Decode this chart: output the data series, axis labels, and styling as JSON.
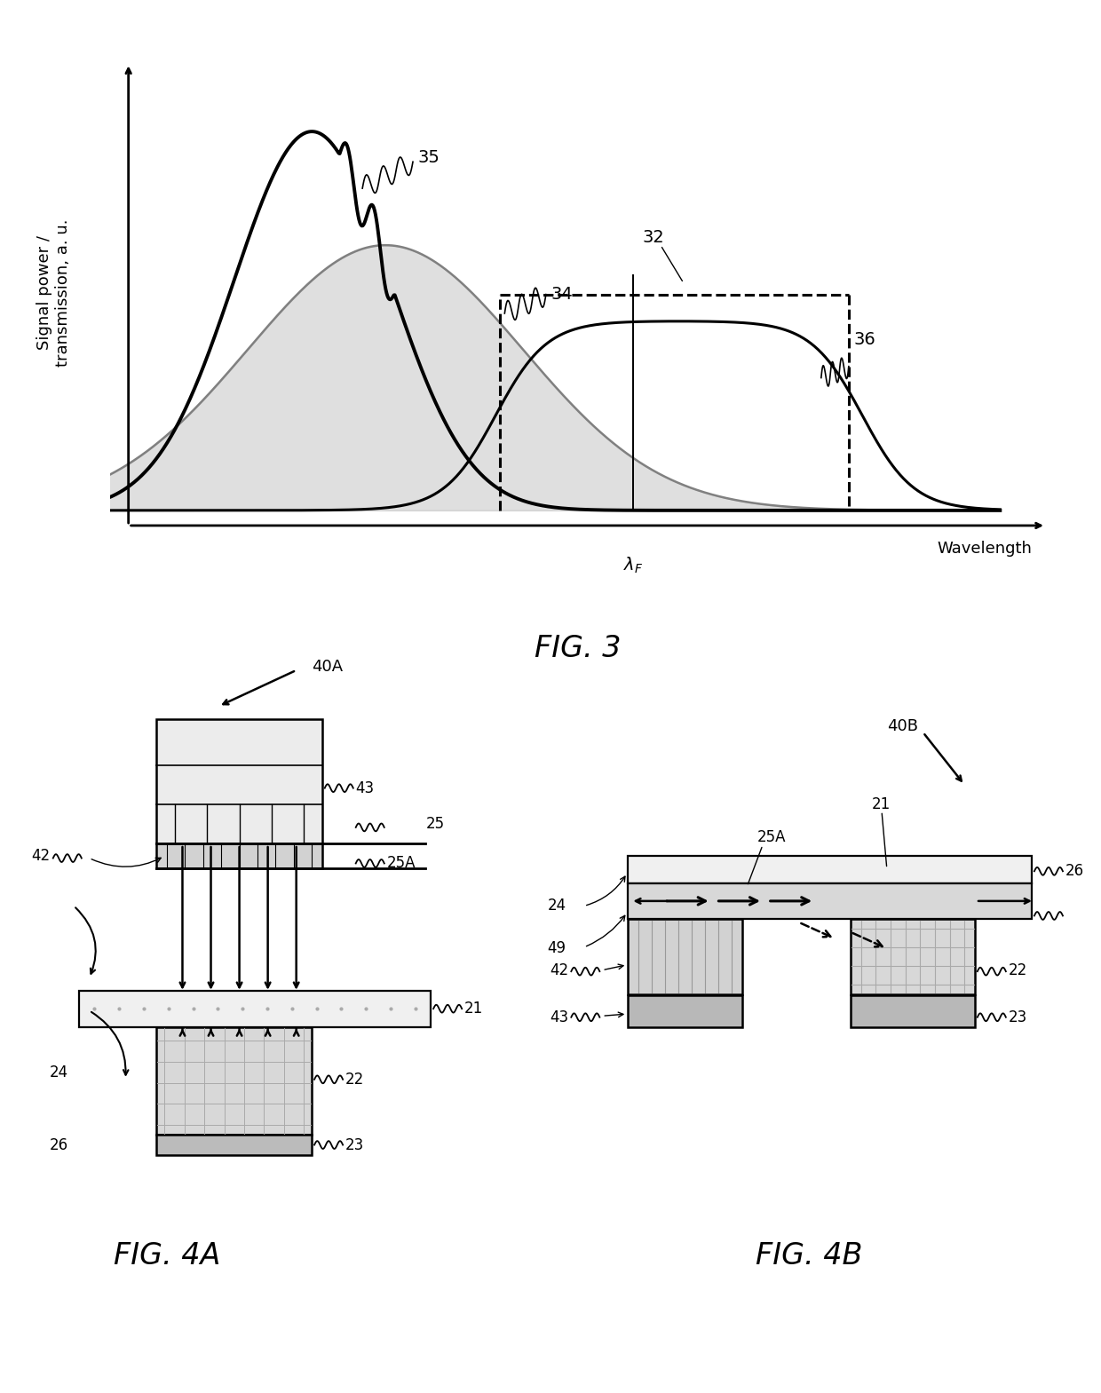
{
  "fig3_ylabel": "Signal power /\ntransmission, a. u.",
  "fig3_xlabel": "Wavelength",
  "fig_caption3": "FIG. 3",
  "fig_caption4a": "FIG. 4A",
  "fig_caption4b": "FIG. 4B",
  "bg_color": "#ffffff"
}
